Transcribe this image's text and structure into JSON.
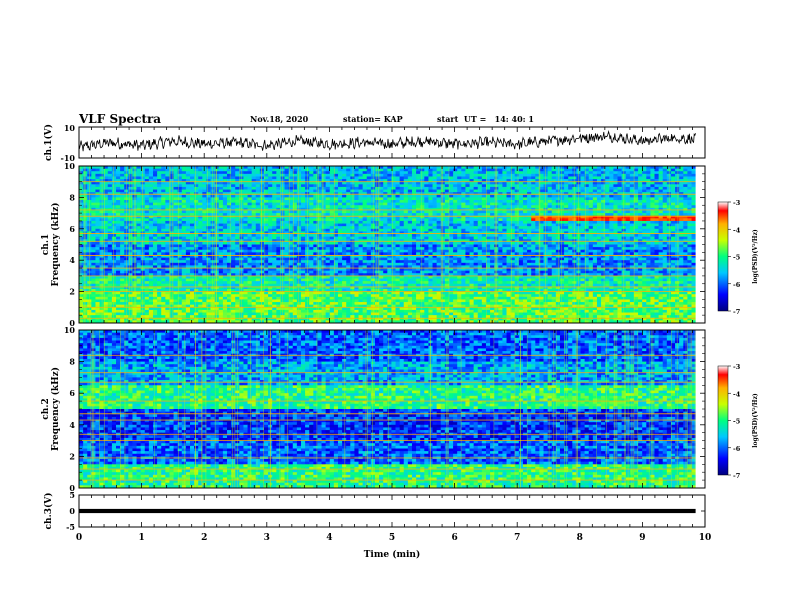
{
  "header": {
    "title": "VLF Spectra",
    "date": "Nov.18, 2020",
    "station": "station= KAP",
    "start": "start  UT =   14: 40: 1"
  },
  "chart_data": [
    {
      "type": "line",
      "panel": "ch1-waveform",
      "ylabel": "ch.1(V)",
      "ylim": [
        -10,
        10
      ],
      "yticks": [
        "10",
        "-10"
      ],
      "xlim": [
        0,
        9.85
      ],
      "series_color": "#000000",
      "envelope": [
        {
          "x": 0.0,
          "y": -3
        },
        {
          "x": 0.5,
          "y": 0
        },
        {
          "x": 1.0,
          "y": -2
        },
        {
          "x": 1.5,
          "y": 1
        },
        {
          "x": 2.0,
          "y": -1
        },
        {
          "x": 2.5,
          "y": 0
        },
        {
          "x": 3.0,
          "y": -2
        },
        {
          "x": 3.5,
          "y": 1
        },
        {
          "x": 4.0,
          "y": -1
        },
        {
          "x": 4.5,
          "y": 0
        },
        {
          "x": 5.0,
          "y": -1
        },
        {
          "x": 5.5,
          "y": 1
        },
        {
          "x": 6.0,
          "y": -1
        },
        {
          "x": 6.5,
          "y": 0
        },
        {
          "x": 7.0,
          "y": -1
        },
        {
          "x": 7.5,
          "y": 1
        },
        {
          "x": 8.0,
          "y": 3
        },
        {
          "x": 8.5,
          "y": 4
        },
        {
          "x": 9.0,
          "y": 1
        },
        {
          "x": 9.5,
          "y": 3
        },
        {
          "x": 9.85,
          "y": 2
        }
      ]
    },
    {
      "type": "heatmap",
      "panel": "ch1-spectrogram",
      "ylabel": "ch.1\nFrequency (kHz)",
      "ylim": [
        0,
        10
      ],
      "yticks": [
        "0",
        "2",
        "4",
        "6",
        "8",
        "10"
      ],
      "xlim": [
        0,
        9.85
      ],
      "colorbar": {
        "label": "log(PSD)(V²/Hz)",
        "min": -7,
        "max": -3,
        "ticks": [
          "-3",
          "-4",
          "-5",
          "-6",
          "-7"
        ]
      },
      "bands_khz": [
        {
          "lo": 0.0,
          "hi": 2.0,
          "level": -4.8
        },
        {
          "lo": 2.0,
          "hi": 3.0,
          "level": -5.2
        },
        {
          "lo": 3.0,
          "hi": 5.0,
          "level": -5.8
        },
        {
          "lo": 5.0,
          "hi": 6.5,
          "level": -5.5
        },
        {
          "lo": 6.5,
          "hi": 8.0,
          "level": -5.3
        },
        {
          "lo": 8.0,
          "hi": 10.0,
          "level": -5.6
        }
      ],
      "lines_khz": [
        0.3,
        1.0,
        2.0,
        2.3,
        3.0,
        3.5,
        4.3,
        5.2,
        5.7,
        6.8,
        7.2,
        8.2,
        9.0
      ],
      "event": {
        "t_start": 7.25,
        "t_end": 9.85,
        "f_lo": 6.5,
        "f_hi": 6.9,
        "level": -3.5
      }
    },
    {
      "type": "heatmap",
      "panel": "ch2-spectrogram",
      "ylabel": "ch.2\nFrequency (kHz)",
      "ylim": [
        0,
        10
      ],
      "yticks": [
        "0",
        "2",
        "4",
        "6",
        "8",
        "10"
      ],
      "xlim": [
        0,
        9.85
      ],
      "colorbar": {
        "label": "log(PSD)(V²/Hz)",
        "min": -7,
        "max": -3,
        "ticks": [
          "-3",
          "-4",
          "-5",
          "-6",
          "-7"
        ]
      },
      "bands_khz": [
        {
          "lo": 0.0,
          "hi": 1.5,
          "level": -5.0
        },
        {
          "lo": 1.5,
          "hi": 3.0,
          "level": -6.0
        },
        {
          "lo": 3.0,
          "hi": 5.0,
          "level": -6.2
        },
        {
          "lo": 5.0,
          "hi": 6.5,
          "level": -5.0
        },
        {
          "lo": 6.5,
          "hi": 8.0,
          "level": -5.7
        },
        {
          "lo": 8.0,
          "hi": 10.0,
          "level": -6.0
        }
      ],
      "lines_khz": [
        0.5,
        1.2,
        1.9,
        3.0,
        3.4,
        4.3,
        4.7,
        5.5,
        6.7,
        7.3,
        8.4
      ],
      "event": {
        "t_start": 7.6,
        "t_end": 8.8,
        "f_lo": 5.2,
        "f_hi": 5.8,
        "level": -4.8
      }
    },
    {
      "type": "line",
      "panel": "ch3-waveform",
      "ylabel": "ch.3(V)",
      "ylim": [
        -5,
        5
      ],
      "yticks": [
        "5",
        "0",
        "-5"
      ],
      "xlabel": "Time (min)",
      "xlim": [
        0,
        10
      ],
      "xticks": [
        "0",
        "1",
        "2",
        "3",
        "4",
        "5",
        "6",
        "7",
        "8",
        "9",
        "10"
      ],
      "level_v": 0,
      "thickness_v": 1,
      "x_end": 9.85
    }
  ]
}
